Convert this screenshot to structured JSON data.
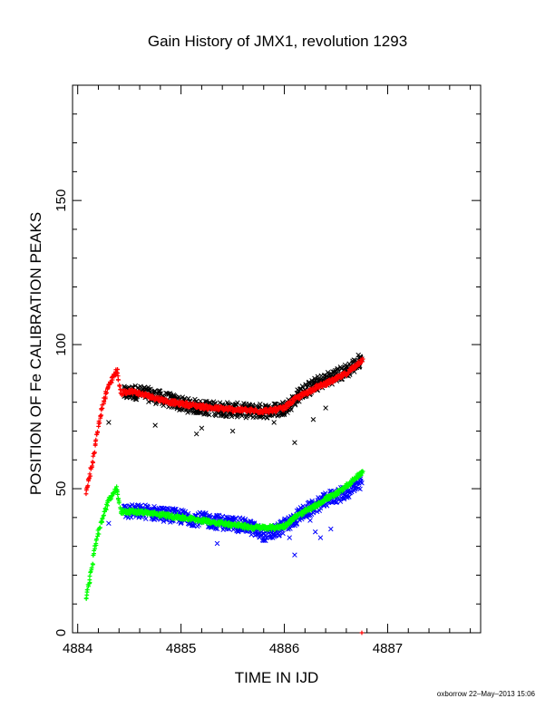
{
  "chart_data": {
    "type": "scatter",
    "title": "Gain History of JMX1, revolution 1293",
    "xlabel": "TIME IN IJD",
    "ylabel": "POSITION OF Fe CALIBRATION PEAKS",
    "xlim": [
      4883.95,
      4887.9
    ],
    "ylim": [
      0,
      190
    ],
    "x_ticks": [
      4884,
      4885,
      4886,
      4887
    ],
    "y_ticks": [
      0,
      50,
      100,
      150
    ],
    "grid": false,
    "series": [
      {
        "color": "#000000",
        "marker": "x",
        "scatter": 2.5,
        "points": [
          [
            4884.45,
            83
          ],
          [
            4884.55,
            83.5
          ],
          [
            4884.65,
            83
          ],
          [
            4884.75,
            82
          ],
          [
            4884.85,
            81
          ],
          [
            4884.95,
            80
          ],
          [
            4885.05,
            79
          ],
          [
            4885.15,
            78.5
          ],
          [
            4885.25,
            78
          ],
          [
            4885.35,
            77.8
          ],
          [
            4885.45,
            77.5
          ],
          [
            4885.55,
            77.3
          ],
          [
            4885.65,
            77
          ],
          [
            4885.75,
            77
          ],
          [
            4885.85,
            77
          ],
          [
            4885.95,
            77.5
          ],
          [
            4886.05,
            79
          ],
          [
            4886.15,
            83
          ],
          [
            4886.25,
            85
          ],
          [
            4886.35,
            87
          ],
          [
            4886.45,
            88.5
          ],
          [
            4886.55,
            90
          ],
          [
            4886.65,
            92
          ],
          [
            4886.75,
            95
          ]
        ],
        "outliers": [
          [
            4884.3,
            73
          ],
          [
            4884.75,
            72
          ],
          [
            4885.15,
            69
          ],
          [
            4885.2,
            71
          ],
          [
            4885.5,
            70
          ],
          [
            4886.1,
            66
          ],
          [
            4886.4,
            78
          ],
          [
            4886.28,
            74
          ],
          [
            4885.9,
            73
          ]
        ]
      },
      {
        "color": "#ff0000",
        "marker": "+",
        "scatter": 0.8,
        "points": [
          [
            4884.08,
            49
          ],
          [
            4884.12,
            55
          ],
          [
            4884.16,
            63
          ],
          [
            4884.2,
            72
          ],
          [
            4884.25,
            80
          ],
          [
            4884.3,
            86
          ],
          [
            4884.38,
            91
          ],
          [
            4884.42,
            83
          ],
          [
            4884.5,
            84
          ],
          [
            4884.6,
            83
          ],
          [
            4884.7,
            82
          ],
          [
            4884.8,
            81
          ],
          [
            4884.9,
            80
          ],
          [
            4885.0,
            79.5
          ],
          [
            4885.1,
            79
          ],
          [
            4885.2,
            78.5
          ],
          [
            4885.3,
            78
          ],
          [
            4885.4,
            77.8
          ],
          [
            4885.5,
            77.5
          ],
          [
            4885.6,
            77.3
          ],
          [
            4885.7,
            77
          ],
          [
            4885.8,
            77
          ],
          [
            4885.9,
            77.2
          ],
          [
            4886.0,
            78
          ],
          [
            4886.1,
            81
          ],
          [
            4886.2,
            83
          ],
          [
            4886.3,
            85
          ],
          [
            4886.4,
            86.5
          ],
          [
            4886.5,
            88
          ],
          [
            4886.6,
            90
          ],
          [
            4886.7,
            93
          ],
          [
            4886.76,
            95
          ]
        ],
        "outliers": [
          [
            4886.75,
            0
          ]
        ]
      },
      {
        "color": "#0000ff",
        "marker": "x",
        "scatter": 2.5,
        "points": [
          [
            4884.45,
            42
          ],
          [
            4884.55,
            42
          ],
          [
            4884.65,
            42
          ],
          [
            4884.75,
            41.5
          ],
          [
            4884.85,
            41
          ],
          [
            4884.95,
            40.5
          ],
          [
            4885.05,
            40
          ],
          [
            4885.15,
            39.5
          ],
          [
            4885.25,
            39
          ],
          [
            4885.35,
            38.5
          ],
          [
            4885.45,
            38
          ],
          [
            4885.55,
            37.5
          ],
          [
            4885.65,
            37
          ],
          [
            4885.75,
            35
          ],
          [
            4885.85,
            34
          ],
          [
            4885.95,
            36
          ],
          [
            4886.05,
            38
          ],
          [
            4886.15,
            41
          ],
          [
            4886.25,
            43
          ],
          [
            4886.35,
            45
          ],
          [
            4886.45,
            47
          ],
          [
            4886.55,
            48
          ],
          [
            4886.65,
            50
          ],
          [
            4886.75,
            52
          ]
        ],
        "outliers": [
          [
            4885.35,
            31
          ],
          [
            4885.8,
            32
          ],
          [
            4886.05,
            33
          ],
          [
            4886.1,
            27
          ],
          [
            4886.35,
            33
          ],
          [
            4886.3,
            35
          ],
          [
            4886.25,
            39
          ],
          [
            4886.45,
            36
          ],
          [
            4884.3,
            38
          ]
        ]
      },
      {
        "color": "#00ff00",
        "marker": "+",
        "scatter": 0.8,
        "points": [
          [
            4884.08,
            12
          ],
          [
            4884.12,
            19
          ],
          [
            4884.16,
            28
          ],
          [
            4884.2,
            35
          ],
          [
            4884.25,
            41
          ],
          [
            4884.3,
            46
          ],
          [
            4884.38,
            50
          ],
          [
            4884.42,
            42
          ],
          [
            4884.5,
            42
          ],
          [
            4884.6,
            42
          ],
          [
            4884.7,
            41.5
          ],
          [
            4884.8,
            41
          ],
          [
            4884.9,
            40.5
          ],
          [
            4885.0,
            40
          ],
          [
            4885.1,
            39.5
          ],
          [
            4885.2,
            39
          ],
          [
            4885.3,
            38.5
          ],
          [
            4885.4,
            38
          ],
          [
            4885.5,
            37.5
          ],
          [
            4885.6,
            37
          ],
          [
            4885.7,
            36.5
          ],
          [
            4885.8,
            36.5
          ],
          [
            4885.9,
            36.5
          ],
          [
            4886.0,
            37
          ],
          [
            4886.05,
            38.5
          ],
          [
            4886.1,
            40
          ],
          [
            4886.2,
            42
          ],
          [
            4886.3,
            44
          ],
          [
            4886.4,
            46.5
          ],
          [
            4886.5,
            48
          ],
          [
            4886.6,
            51
          ],
          [
            4886.7,
            54
          ],
          [
            4886.76,
            56
          ]
        ],
        "outliers": []
      }
    ]
  },
  "footer": {
    "credit": "oxborrow 22–May–2013 15:06"
  }
}
